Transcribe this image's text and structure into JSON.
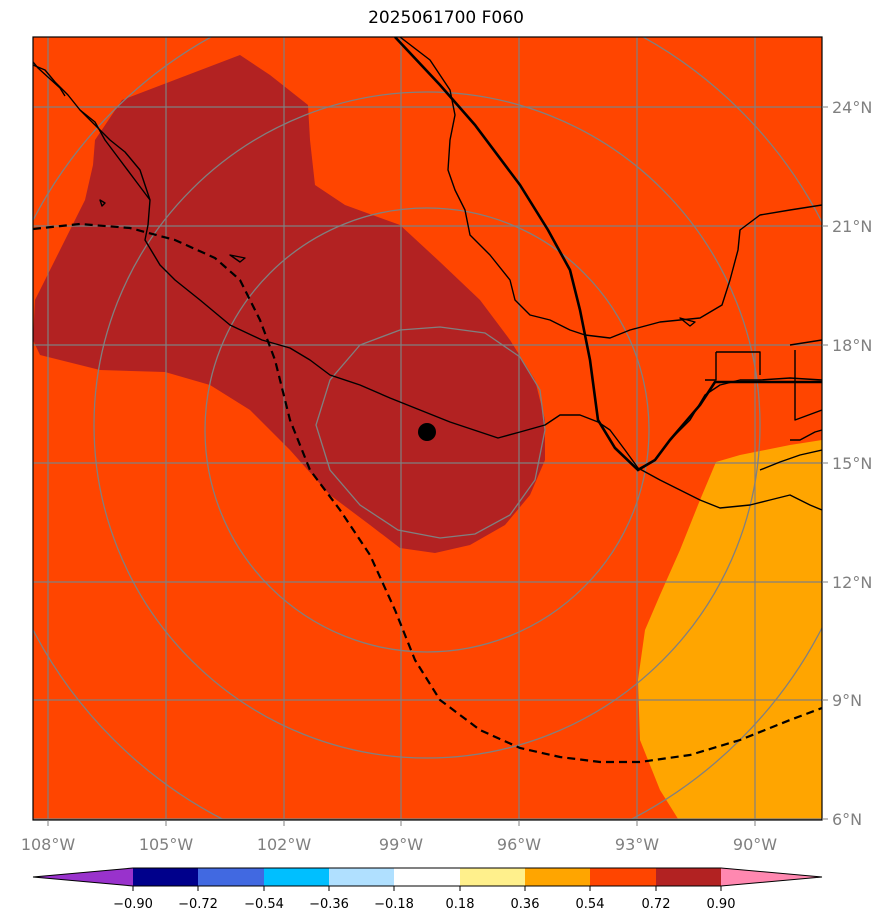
{
  "title": "2025061700 F060",
  "map": {
    "lon_labels": [
      "108°W",
      "105°W",
      "102°W",
      "99°W",
      "96°W",
      "93°W",
      "90°W"
    ],
    "lat_labels": [
      "24°N",
      "21°N",
      "18°N",
      "15°N",
      "12°N",
      "9°N",
      "6°N"
    ],
    "center_marker": {
      "lon": -98.3,
      "lat": 15.8
    },
    "colors": {
      "background_field": "#ff4500",
      "high_field": "#b22222",
      "low_field": "#ffa500",
      "graticule": "#808080",
      "range_rings": "#808080",
      "coastline": "#000000"
    }
  },
  "colorbar": {
    "tick_labels": [
      "−0.90",
      "−0.72",
      "−0.54",
      "−0.36",
      "−0.18",
      "0.18",
      "0.36",
      "0.54",
      "0.72",
      "0.90"
    ],
    "colors": [
      "#9932cc",
      "#00008b",
      "#4169e1",
      "#00bfff",
      "#b0e0ff",
      "#ffffff",
      "#fff08c",
      "#ffa500",
      "#ff4500",
      "#b22222",
      "#ff88b0"
    ]
  }
}
